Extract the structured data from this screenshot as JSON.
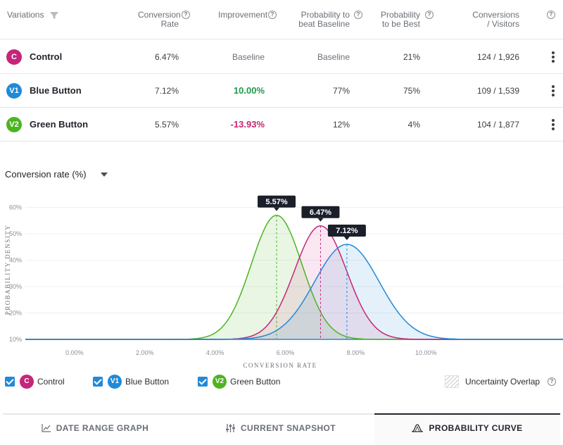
{
  "table": {
    "headers": {
      "variations": "Variations",
      "conversion_rate": [
        "Conversion",
        "Rate"
      ],
      "improvement": "Improvement",
      "prob_beat": [
        "Probability to",
        "beat Baseline"
      ],
      "prob_best": [
        "Probability",
        "to be Best"
      ],
      "conversions": [
        "Conversions",
        "/ Visitors"
      ]
    },
    "rows": [
      {
        "badge": "C",
        "color": "#c4267a",
        "name": "Control",
        "rate": "6.47%",
        "improvement": "Baseline",
        "beat": "Baseline",
        "best": "21%",
        "conv": "124 / 1,926"
      },
      {
        "badge": "V1",
        "color": "#1f8ad8",
        "name": "Blue Button",
        "rate": "7.12%",
        "improvement": "10.00%",
        "beat": "77%",
        "best": "75%",
        "conv": "109 / 1,539"
      },
      {
        "badge": "V2",
        "color": "#4db421",
        "name": "Green Button",
        "rate": "5.57%",
        "improvement": "-13.93%",
        "beat": "12%",
        "best": "4%",
        "conv": "104 / 1,877"
      }
    ]
  },
  "chart_header": {
    "title": "Conversion rate (%)"
  },
  "chart_data": {
    "type": "area",
    "xlabel": "CONVERSION RATE",
    "ylabel": "PROBABILITY DENSITY",
    "x_ticks": [
      "0.00%",
      "2.00%",
      "4.00%",
      "6.00%",
      "8.00%",
      "10.00%"
    ],
    "y_ticks": [
      "10%",
      "20%",
      "30%",
      "40%",
      "50%",
      "60%"
    ],
    "xlim": [
      -1.4,
      13.9
    ],
    "ylim": [
      10,
      62
    ],
    "series": [
      {
        "name": "Green Button",
        "color": "#4db421",
        "fill": "rgba(77,180,33,0.12)",
        "mean": 5.75,
        "sd": 0.72,
        "peak": 57,
        "label": "5.57%"
      },
      {
        "name": "Control",
        "color": "#c4267a",
        "fill": "rgba(224,60,150,0.12)",
        "mean": 7.0,
        "sd": 0.74,
        "peak": 53,
        "label": "6.47%"
      },
      {
        "name": "Blue Button",
        "color": "#2389d6",
        "fill": "rgba(35,137,214,0.12)",
        "mean": 7.75,
        "sd": 0.92,
        "peak": 46,
        "label": "7.12%"
      }
    ]
  },
  "legend": {
    "items": [
      {
        "badge": "C",
        "color": "#c4267a",
        "label": "Control"
      },
      {
        "badge": "V1",
        "color": "#1f8ad8",
        "label": "Blue Button"
      },
      {
        "badge": "V2",
        "color": "#4db421",
        "label": "Green Button"
      }
    ],
    "overlap_label": "Uncertainty Overlap"
  },
  "tabs": [
    {
      "label": "DATE RANGE GRAPH",
      "icon": "line-chart-icon",
      "active": false
    },
    {
      "label": "CURRENT SNAPSHOT",
      "icon": "sliders-icon",
      "active": false
    },
    {
      "label": "PROBABILITY CURVE",
      "icon": "curve-icon",
      "active": true
    }
  ],
  "help_glyph": "?"
}
